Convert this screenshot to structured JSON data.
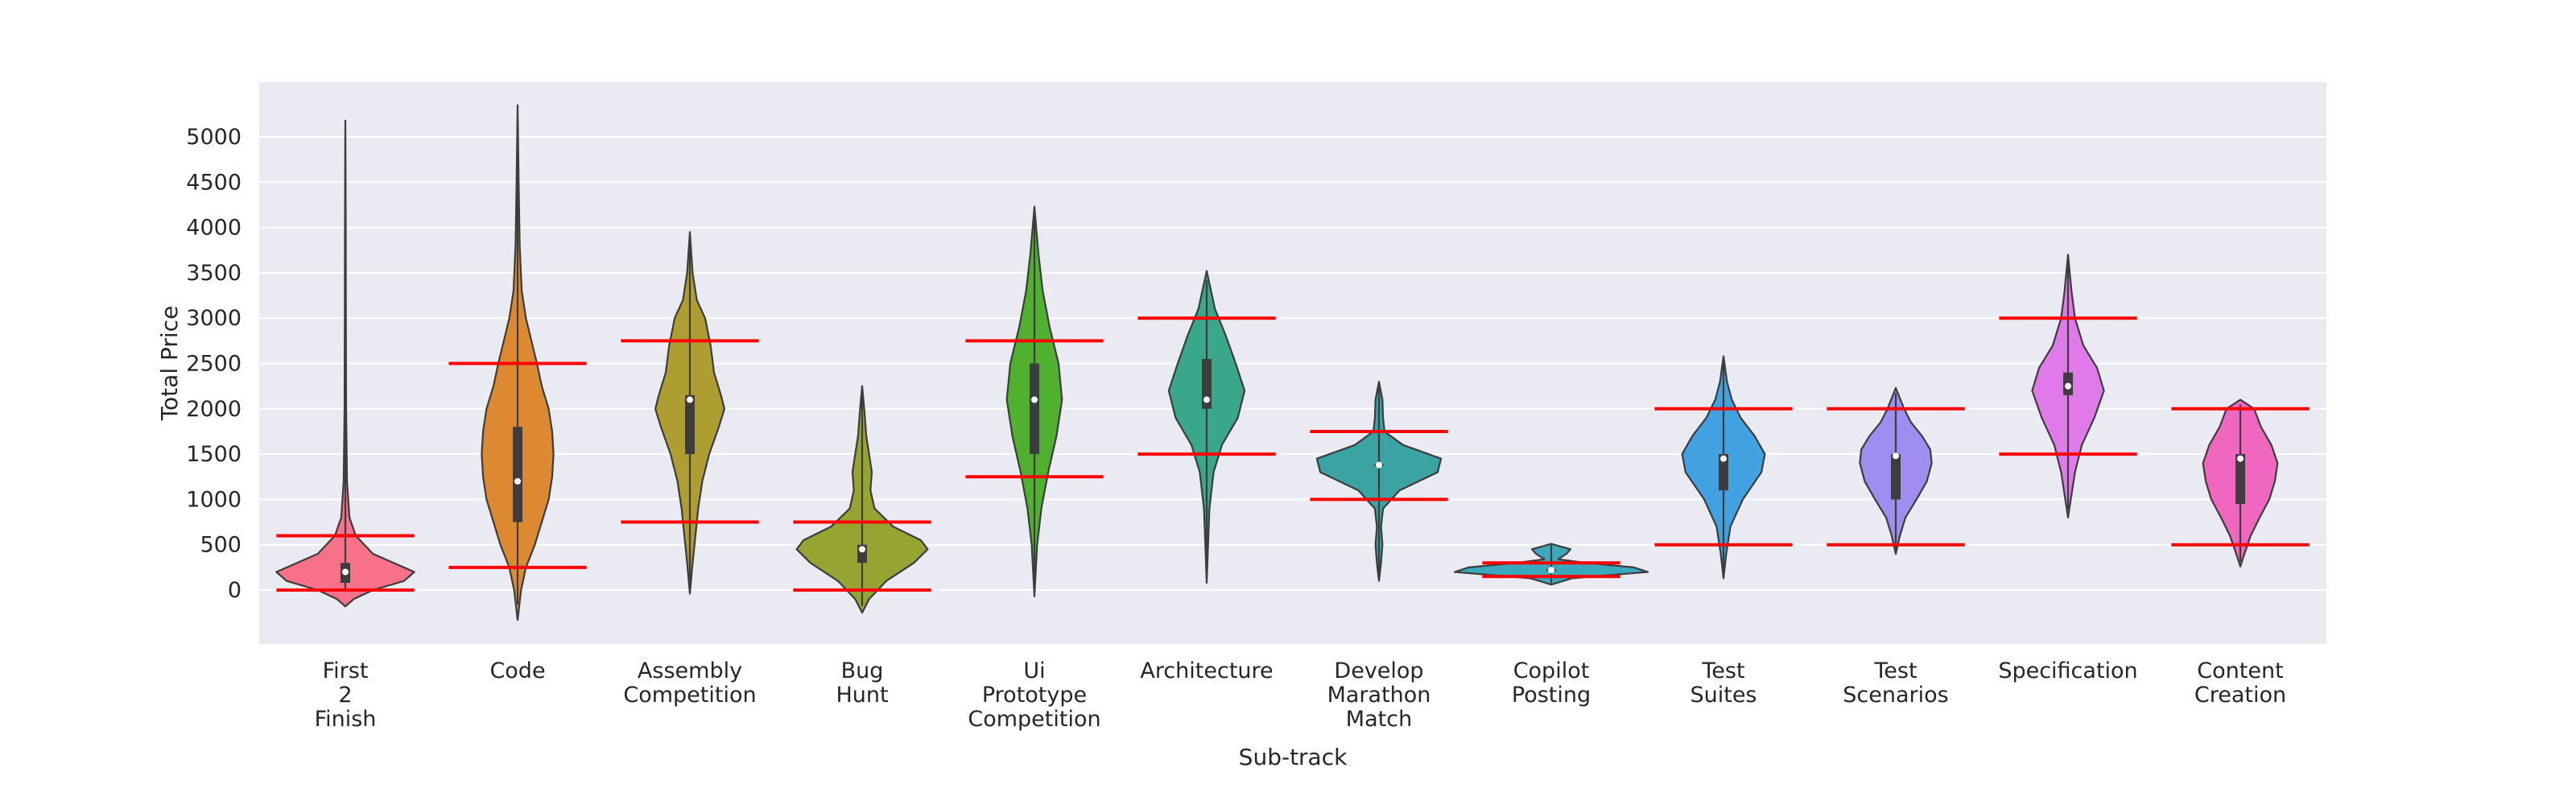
{
  "chart_data": {
    "type": "violin",
    "xlabel": "Sub-track",
    "ylabel": "Total Price",
    "ylim": [
      -600,
      5600
    ],
    "yticks": [
      0,
      500,
      1000,
      1500,
      2000,
      2500,
      3000,
      3500,
      4000,
      4500,
      5000
    ],
    "grid": true,
    "reference_line_color": "#ff0000",
    "categories": [
      {
        "label": [
          "First",
          "2",
          "Finish"
        ],
        "color": "#f77189",
        "min": -180,
        "max": 5180,
        "median": 200,
        "q1": 80,
        "q3": 300,
        "lower_line": 0,
        "upper_line": 600,
        "density": [
          [
            -180,
            0.0
          ],
          [
            -100,
            0.12
          ],
          [
            0,
            0.4
          ],
          [
            100,
            0.85
          ],
          [
            200,
            1.0
          ],
          [
            300,
            0.7
          ],
          [
            400,
            0.4
          ],
          [
            600,
            0.15
          ],
          [
            800,
            0.06
          ],
          [
            1200,
            0.025
          ],
          [
            2000,
            0.012
          ],
          [
            3000,
            0.008
          ],
          [
            4000,
            0.006
          ],
          [
            5180,
            0.0
          ]
        ]
      },
      {
        "label": [
          "Code"
        ],
        "color": "#dc8932",
        "min": -330,
        "max": 5350,
        "median": 1200,
        "q1": 750,
        "q3": 1800,
        "lower_line": 250,
        "upper_line": 2500,
        "density": [
          [
            -330,
            0.0
          ],
          [
            0,
            0.05
          ],
          [
            250,
            0.12
          ],
          [
            500,
            0.25
          ],
          [
            750,
            0.35
          ],
          [
            1000,
            0.45
          ],
          [
            1250,
            0.5
          ],
          [
            1500,
            0.52
          ],
          [
            1750,
            0.5
          ],
          [
            2000,
            0.45
          ],
          [
            2250,
            0.35
          ],
          [
            2500,
            0.28
          ],
          [
            2750,
            0.2
          ],
          [
            3000,
            0.12
          ],
          [
            3300,
            0.06
          ],
          [
            3800,
            0.03
          ],
          [
            4500,
            0.015
          ],
          [
            5350,
            0.0
          ]
        ]
      },
      {
        "label": [
          "Assembly",
          "Competition"
        ],
        "color": "#ae9d31",
        "min": -40,
        "max": 3950,
        "median": 2100,
        "q1": 1500,
        "q3": 2150,
        "lower_line": 750,
        "upper_line": 2750,
        "density": [
          [
            -40,
            0.0
          ],
          [
            300,
            0.04
          ],
          [
            600,
            0.08
          ],
          [
            900,
            0.12
          ],
          [
            1200,
            0.18
          ],
          [
            1500,
            0.28
          ],
          [
            1800,
            0.42
          ],
          [
            2000,
            0.5
          ],
          [
            2150,
            0.45
          ],
          [
            2400,
            0.35
          ],
          [
            2700,
            0.3
          ],
          [
            3000,
            0.22
          ],
          [
            3200,
            0.1
          ],
          [
            3500,
            0.04
          ],
          [
            3950,
            0.0
          ]
        ]
      },
      {
        "label": [
          "Bug",
          "Hunt"
        ],
        "color": "#97a431",
        "min": -250,
        "max": 2250,
        "median": 450,
        "q1": 300,
        "q3": 500,
        "lower_line": 0,
        "upper_line": 750,
        "density": [
          [
            -250,
            0.0
          ],
          [
            -100,
            0.1
          ],
          [
            100,
            0.35
          ],
          [
            300,
            0.75
          ],
          [
            450,
            0.95
          ],
          [
            550,
            0.85
          ],
          [
            700,
            0.45
          ],
          [
            900,
            0.18
          ],
          [
            1100,
            0.12
          ],
          [
            1300,
            0.14
          ],
          [
            1500,
            0.1
          ],
          [
            1700,
            0.06
          ],
          [
            2000,
            0.03
          ],
          [
            2250,
            0.0
          ]
        ]
      },
      {
        "label": [
          "Ui",
          "Prototype",
          "Competition"
        ],
        "color": "#50b131",
        "min": -70,
        "max": 4230,
        "median": 2100,
        "q1": 1500,
        "q3": 2500,
        "lower_line": 1250,
        "upper_line": 2750,
        "density": [
          [
            -70,
            0.0
          ],
          [
            500,
            0.04
          ],
          [
            900,
            0.1
          ],
          [
            1300,
            0.2
          ],
          [
            1700,
            0.32
          ],
          [
            2100,
            0.4
          ],
          [
            2500,
            0.35
          ],
          [
            2900,
            0.22
          ],
          [
            3300,
            0.12
          ],
          [
            3700,
            0.06
          ],
          [
            4230,
            0.0
          ]
        ]
      },
      {
        "label": [
          "Architecture"
        ],
        "color": "#3aa68a",
        "min": 80,
        "max": 3520,
        "median": 2100,
        "q1": 2000,
        "q3": 2550,
        "lower_line": 1500,
        "upper_line": 3000,
        "density": [
          [
            80,
            0.0
          ],
          [
            500,
            0.02
          ],
          [
            900,
            0.04
          ],
          [
            1300,
            0.1
          ],
          [
            1600,
            0.22
          ],
          [
            1900,
            0.45
          ],
          [
            2200,
            0.55
          ],
          [
            2500,
            0.42
          ],
          [
            2800,
            0.28
          ],
          [
            3100,
            0.12
          ],
          [
            3520,
            0.0
          ]
        ]
      },
      {
        "label": [
          "Develop",
          "Marathon",
          "Match"
        ],
        "color": "#3ba3a3",
        "min": 100,
        "max": 2300,
        "median": 1380,
        "q1": 1370,
        "q3": 1390,
        "lower_line": 1000,
        "upper_line": 1750,
        "density": [
          [
            100,
            0.0
          ],
          [
            300,
            0.03
          ],
          [
            500,
            0.05
          ],
          [
            700,
            0.03
          ],
          [
            900,
            0.06
          ],
          [
            1100,
            0.3
          ],
          [
            1300,
            0.85
          ],
          [
            1450,
            0.9
          ],
          [
            1600,
            0.35
          ],
          [
            1750,
            0.08
          ],
          [
            1900,
            0.06
          ],
          [
            2100,
            0.05
          ],
          [
            2300,
            0.0
          ]
        ]
      },
      {
        "label": [
          "Copilot",
          "Posting"
        ],
        "color": "#3ca8bc",
        "min": 60,
        "max": 510,
        "median": 220,
        "q1": 210,
        "q3": 230,
        "lower_line": 150,
        "upper_line": 300,
        "density": [
          [
            60,
            0.0
          ],
          [
            130,
            0.3
          ],
          [
            200,
            1.4
          ],
          [
            250,
            1.2
          ],
          [
            300,
            0.5
          ],
          [
            340,
            0.1
          ],
          [
            400,
            0.22
          ],
          [
            450,
            0.28
          ],
          [
            510,
            0.0
          ]
        ]
      },
      {
        "label": [
          "Test",
          "Suites"
        ],
        "color": "#41a1e1",
        "min": 130,
        "max": 2580,
        "median": 1450,
        "q1": 1100,
        "q3": 1500,
        "lower_line": 500,
        "upper_line": 2000,
        "density": [
          [
            130,
            0.0
          ],
          [
            400,
            0.04
          ],
          [
            700,
            0.1
          ],
          [
            1000,
            0.28
          ],
          [
            1300,
            0.55
          ],
          [
            1500,
            0.6
          ],
          [
            1700,
            0.45
          ],
          [
            1900,
            0.25
          ],
          [
            2100,
            0.12
          ],
          [
            2300,
            0.05
          ],
          [
            2580,
            0.0
          ]
        ]
      },
      {
        "label": [
          "Test",
          "Scenarios"
        ],
        "color": "#9f8ef0",
        "min": 400,
        "max": 2230,
        "median": 1480,
        "q1": 1000,
        "q3": 1500,
        "lower_line": 500,
        "upper_line": 2000,
        "density": [
          [
            400,
            0.0
          ],
          [
            600,
            0.06
          ],
          [
            800,
            0.14
          ],
          [
            1000,
            0.3
          ],
          [
            1200,
            0.45
          ],
          [
            1400,
            0.52
          ],
          [
            1550,
            0.5
          ],
          [
            1700,
            0.38
          ],
          [
            1850,
            0.22
          ],
          [
            2000,
            0.12
          ],
          [
            2230,
            0.0
          ]
        ]
      },
      {
        "label": [
          "Specification"
        ],
        "color": "#e07aea",
        "min": 800,
        "max": 3700,
        "median": 2250,
        "q1": 2150,
        "q3": 2400,
        "lower_line": 1500,
        "upper_line": 3000,
        "density": [
          [
            800,
            0.0
          ],
          [
            1000,
            0.04
          ],
          [
            1300,
            0.1
          ],
          [
            1600,
            0.2
          ],
          [
            1900,
            0.38
          ],
          [
            2200,
            0.52
          ],
          [
            2450,
            0.42
          ],
          [
            2700,
            0.22
          ],
          [
            3000,
            0.1
          ],
          [
            3300,
            0.05
          ],
          [
            3700,
            0.0
          ]
        ]
      },
      {
        "label": [
          "Content",
          "Creation"
        ],
        "color": "#f067c0",
        "min": 260,
        "max": 2100,
        "median": 1450,
        "q1": 950,
        "q3": 1500,
        "lower_line": 500,
        "upper_line": 2000,
        "density": [
          [
            260,
            0.0
          ],
          [
            400,
            0.06
          ],
          [
            600,
            0.15
          ],
          [
            800,
            0.28
          ],
          [
            1000,
            0.42
          ],
          [
            1200,
            0.5
          ],
          [
            1400,
            0.54
          ],
          [
            1600,
            0.45
          ],
          [
            1800,
            0.3
          ],
          [
            2000,
            0.2
          ],
          [
            2100,
            0.0
          ]
        ]
      }
    ]
  }
}
